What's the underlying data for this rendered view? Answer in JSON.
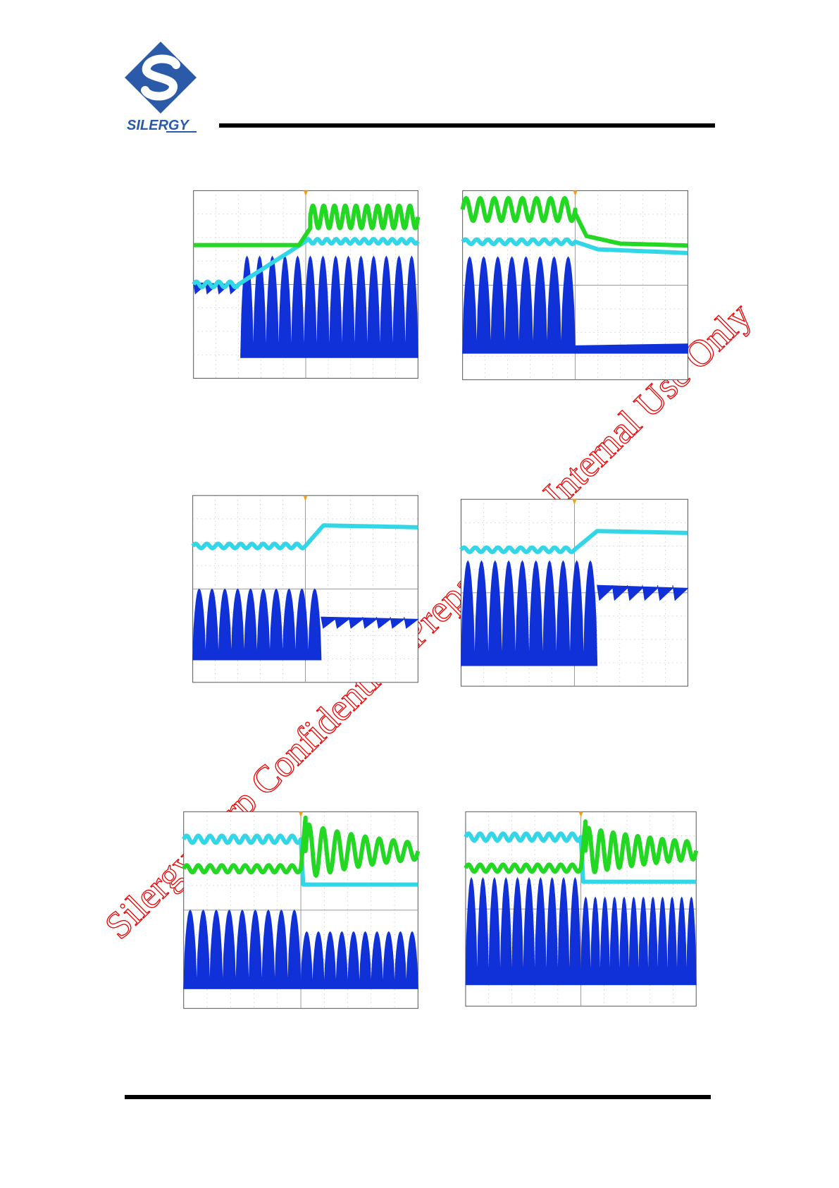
{
  "header": {
    "logo_text": "SILERGY"
  },
  "watermark": "Silergy Corp Confidential- Prepared for Internal Use Only"
}
